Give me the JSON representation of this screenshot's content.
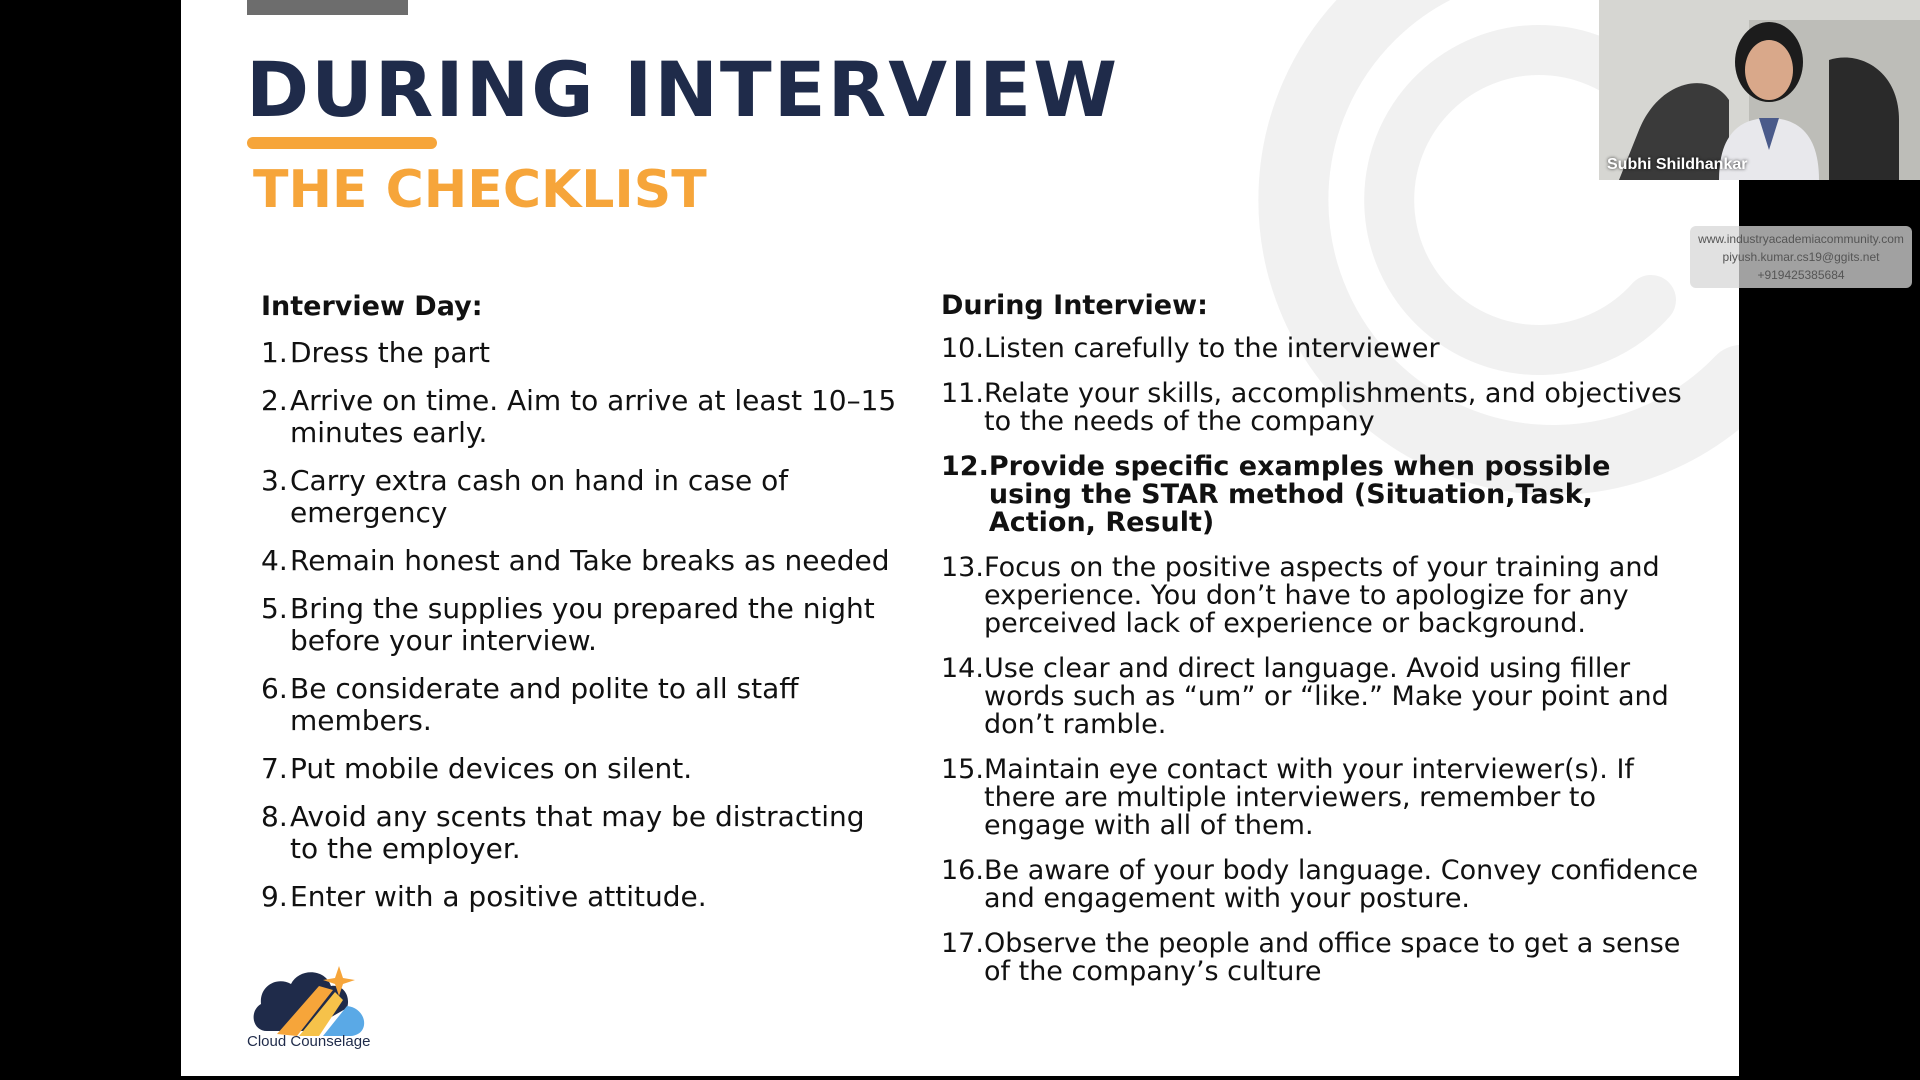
{
  "slide": {
    "title": "DURING INTERVIEW",
    "subtitle": "THE CHECKLIST",
    "left": {
      "heading": "Interview Day:",
      "items": [
        {
          "num": "1.",
          "text": "Dress the part"
        },
        {
          "num": "2.",
          "text": "Arrive on time. Aim to arrive at least 10–15 minutes early."
        },
        {
          "num": "3.",
          "text": "Carry extra cash on hand in case of emergency"
        },
        {
          "num": "4.",
          "text": "Remain honest and Take breaks as needed"
        },
        {
          "num": "5.",
          "text": "Bring the supplies you prepared the night before your interview."
        },
        {
          "num": "6.",
          "text": "Be considerate and polite to all staff members."
        },
        {
          "num": "7.",
          "text": "Put mobile devices on silent."
        },
        {
          "num": "8.",
          "text": "Avoid any scents that may be distracting to the employer."
        },
        {
          "num": "9.",
          "text": "Enter with a positive attitude."
        }
      ]
    },
    "right": {
      "heading": "During Interview:",
      "items": [
        {
          "num": "10.",
          "text": "Listen carefully to the interviewer"
        },
        {
          "num": "11.",
          "text": "Relate your skills, accomplishments, and objectives to the needs of the company"
        },
        {
          "num": "12.",
          "text": "Provide specific examples when possible using the STAR method (Situation,Task, Action, Result)",
          "bold": true
        },
        {
          "num": "13.",
          "text": "Focus on the positive aspects of your training and experience. You don’t have to apologize for any perceived lack of experience or background."
        },
        {
          "num": "14.",
          "text": "Use clear and direct language. Avoid using filler words such as “um” or “like.” Make your point and don’t ramble."
        },
        {
          "num": "15.",
          "text": "Maintain eye contact with your interviewer(s). If there are multiple interviewers, remember to engage with all of them."
        },
        {
          "num": "16.",
          "text": "Be aware of your body language. Convey confidence and engagement with your posture."
        },
        {
          "num": "17.",
          "text": "Observe the people and office space to get a sense of the company’s culture"
        }
      ]
    },
    "logo_caption": "Cloud Counselage"
  },
  "video": {
    "participant_name": "Subhi Shildhankar"
  },
  "info_box": {
    "website": "www.industryacademiacommunity.com",
    "email": "piyush.kumar.cs19@ggits.net",
    "phone": "+919425385684"
  },
  "colors": {
    "title": "#1f2b4a",
    "accent": "#f6a53a",
    "logo_navy": "#1f2b4a",
    "logo_blue": "#5aa9e6"
  }
}
